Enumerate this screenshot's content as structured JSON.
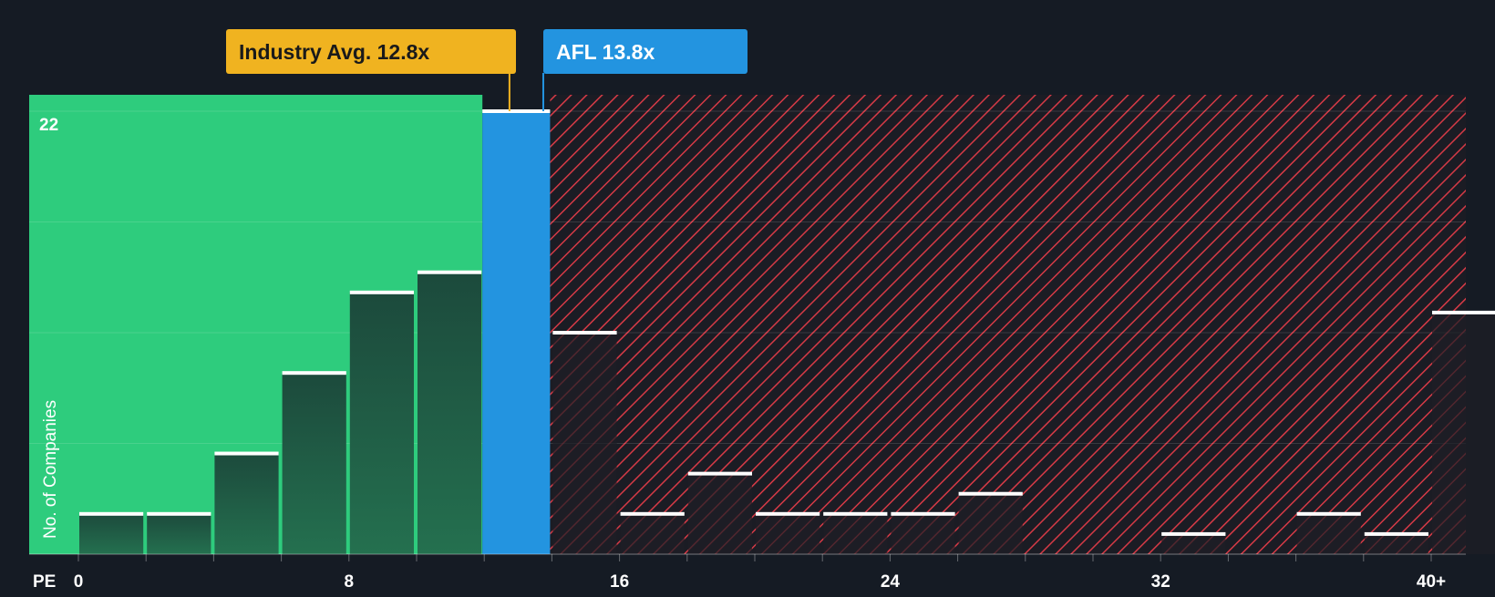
{
  "chart_data": {
    "type": "bar",
    "x_axis_label": "PE",
    "y_axis_label": "No. of Companies",
    "y_max_label": "22",
    "ylim": [
      0,
      22
    ],
    "x_ticks": [
      "0",
      "8",
      "16",
      "24",
      "32",
      "40+"
    ],
    "bin_width": 2,
    "bins": [
      {
        "x0": 0,
        "count": 2
      },
      {
        "x0": 2,
        "count": 2
      },
      {
        "x0": 4,
        "count": 5
      },
      {
        "x0": 6,
        "count": 9
      },
      {
        "x0": 8,
        "count": 13
      },
      {
        "x0": 10,
        "count": 14
      },
      {
        "x0": 12,
        "count": 22
      },
      {
        "x0": 14,
        "count": 11
      },
      {
        "x0": 16,
        "count": 2
      },
      {
        "x0": 18,
        "count": 4
      },
      {
        "x0": 20,
        "count": 2
      },
      {
        "x0": 22,
        "count": 2
      },
      {
        "x0": 24,
        "count": 2
      },
      {
        "x0": 26,
        "count": 3
      },
      {
        "x0": 28,
        "count": 0
      },
      {
        "x0": 30,
        "count": 0
      },
      {
        "x0": 32,
        "count": 1
      },
      {
        "x0": 34,
        "count": 0
      },
      {
        "x0": 36,
        "count": 2
      },
      {
        "x0": 38,
        "count": 1
      },
      {
        "x0": 40,
        "count": 12
      }
    ],
    "markers": {
      "industry": {
        "label": "Industry Avg. 12.8x",
        "value": 12.8
      },
      "company": {
        "label": "AFL 13.8x",
        "value": 13.8
      }
    },
    "colors": {
      "background": "#151b24",
      "undervalued_zone": "#2ecc7d",
      "bar_in_green": "#1e5040",
      "highlight_bar": "#2394e0",
      "overvalued_hatch": "#d63a46",
      "industry_label": "#f0b320",
      "company_label": "#2394e0",
      "bar_top": "#ffffff"
    }
  }
}
